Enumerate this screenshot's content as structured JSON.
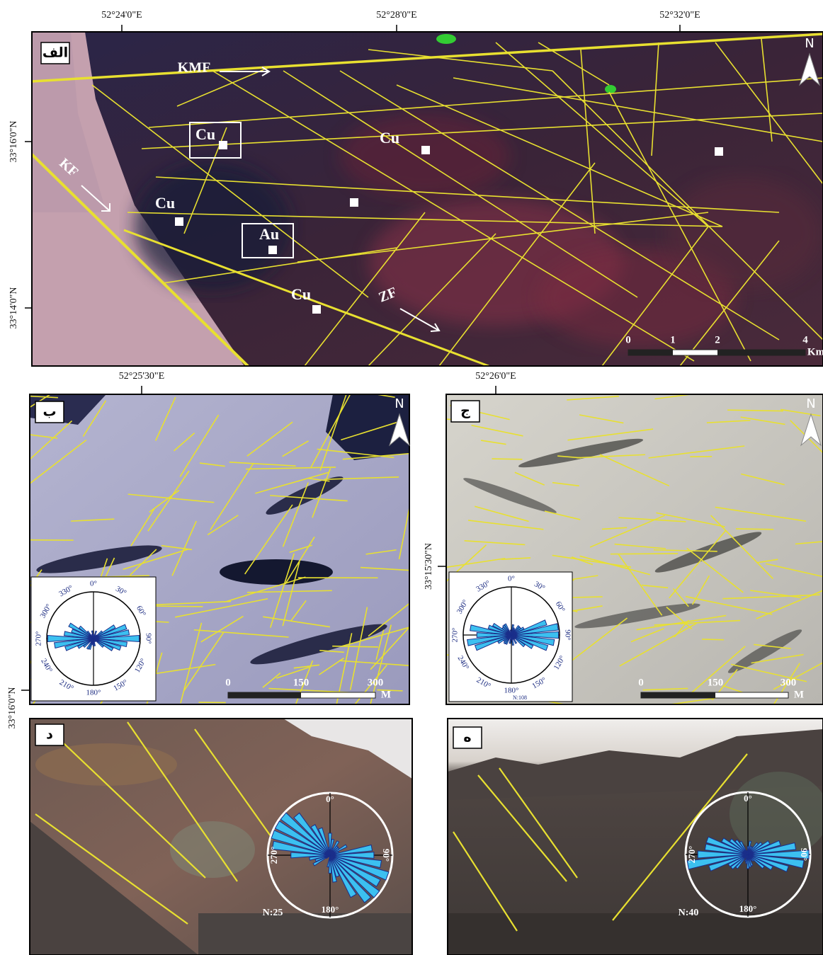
{
  "panel_a": {
    "label": "الف",
    "lon_labels": [
      "52°24'0\"E",
      "52°28'0\"E",
      "52°32'0\"E"
    ],
    "lat_labels": [
      "33°16'0\"N",
      "33°14'0\"N"
    ],
    "faults": {
      "kmf": "KMF",
      "kf": "KF",
      "zf": "ZF"
    },
    "deposits": [
      "Cu",
      "Cu",
      "Cu",
      "Au",
      "Cu"
    ],
    "north": "N",
    "scale_ticks": [
      "0",
      "1",
      "2",
      "4"
    ],
    "scale_unit": "Km"
  },
  "panel_b": {
    "label": "ب",
    "lon_label": "52°25'30\"E",
    "lat_label": "33°16'0\"N",
    "north": "N",
    "rose_labels": [
      "0°",
      "30°",
      "60°",
      "90°",
      "120°",
      "150°",
      "180°",
      "210°",
      "240°",
      "270°",
      "300°",
      "330°"
    ],
    "scale_ticks": [
      "0",
      "150",
      "300"
    ],
    "scale_unit": "M"
  },
  "panel_c": {
    "label": "ج",
    "lon_label": "52°26'0\"E",
    "lat_label": "33°15'30\"N",
    "north": "N",
    "rose_labels": [
      "0°",
      "30°",
      "60°",
      "90°",
      "120°",
      "150°",
      "180°",
      "210°",
      "240°",
      "270°",
      "300°",
      "330°"
    ],
    "rose_count": "N:108",
    "scale_ticks": [
      "0",
      "150",
      "300"
    ],
    "scale_unit": "M"
  },
  "panel_d": {
    "label": "د",
    "rose_labels": [
      "0°",
      "90°",
      "180°",
      "270°"
    ],
    "rose_count": "N:25"
  },
  "panel_e": {
    "label": "ه",
    "rose_labels": [
      "0°",
      "90°",
      "180°",
      "270°"
    ],
    "rose_count": "N:40"
  }
}
